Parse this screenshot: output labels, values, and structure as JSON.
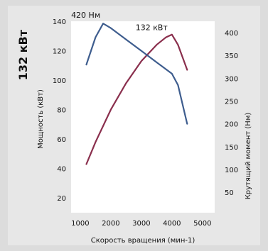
{
  "chart_data": {
    "type": "line",
    "headline_value": "132 кВт",
    "xlabel": "Скорость вращения (мин-1)",
    "ylabel_left": "Мощность (кВт)",
    "ylabel_right": "Крутящий момент (Нм)",
    "x_ticks": [
      "1000",
      "2000",
      "3000",
      "4000",
      "5000"
    ],
    "y_left_ticks": [
      "20",
      "40",
      "60",
      "80",
      "100",
      "120",
      "140"
    ],
    "y_right_ticks": [
      "50",
      "100",
      "150",
      "200",
      "250",
      "300",
      "350",
      "400"
    ],
    "xlim": [
      700,
      5400
    ],
    "ylim_left": [
      10,
      140
    ],
    "ylim_right": [
      5,
      425
    ],
    "grid": false,
    "series": [
      {
        "name": "power",
        "axis": "left",
        "color": "#8a2f4d",
        "label": "132 кВт",
        "points": [
          [
            1200,
            43
          ],
          [
            1500,
            58
          ],
          [
            2000,
            80
          ],
          [
            2500,
            98
          ],
          [
            3000,
            113
          ],
          [
            3500,
            124
          ],
          [
            3800,
            129
          ],
          [
            4000,
            131
          ],
          [
            4200,
            124
          ],
          [
            4500,
            107
          ]
        ]
      },
      {
        "name": "torque",
        "axis": "right",
        "color": "#3e5d8e",
        "label": "420 Нм",
        "points": [
          [
            1200,
            330
          ],
          [
            1500,
            390
          ],
          [
            1750,
            420
          ],
          [
            2000,
            410
          ],
          [
            2500,
            385
          ],
          [
            3000,
            360
          ],
          [
            3500,
            335
          ],
          [
            4000,
            310
          ],
          [
            4200,
            285
          ],
          [
            4500,
            200
          ]
        ]
      }
    ]
  }
}
